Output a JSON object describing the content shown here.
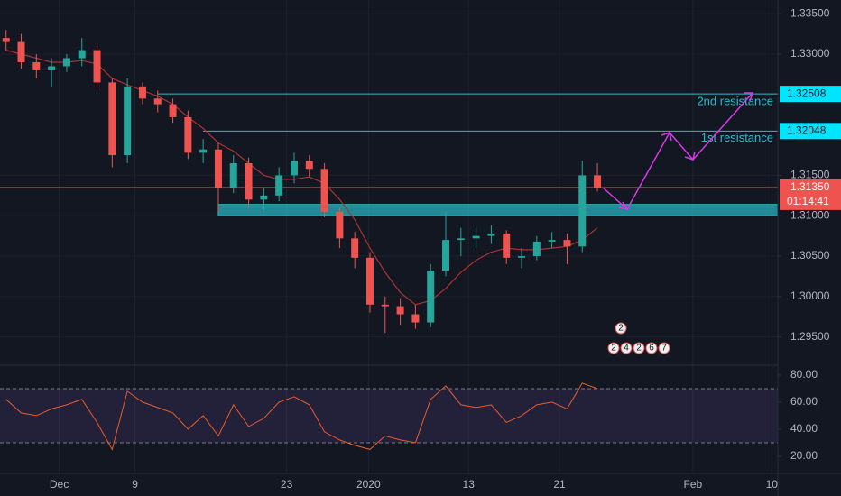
{
  "chart_data": {
    "type": "candlestick",
    "up_color": "#26a69a",
    "down_color": "#ef5350",
    "grid": true,
    "xlim": [
      -3.9,
      47.4
    ],
    "xticks": [
      {
        "value": 0,
        "label": "Dec"
      },
      {
        "value": 5,
        "label": "9"
      },
      {
        "value": 15,
        "label": "23"
      },
      {
        "value": 20.4,
        "label": "2020"
      },
      {
        "value": 27,
        "label": "13"
      },
      {
        "value": 33,
        "label": "21"
      },
      {
        "value": 41.8,
        "label": "Feb"
      },
      {
        "value": 47,
        "label": "10"
      }
    ],
    "ylim": [
      1.2915,
      1.3367
    ],
    "yticks": [
      {
        "value": 1.335,
        "label": "1.33500"
      },
      {
        "value": 1.33,
        "label": "1.33000"
      },
      {
        "value": 1.315,
        "label": "1.31500"
      },
      {
        "value": 1.31,
        "label": "1.31000"
      },
      {
        "value": 1.305,
        "label": "1.30500"
      },
      {
        "value": 1.3,
        "label": "1.30000"
      },
      {
        "value": 1.295,
        "label": "1.29500"
      }
    ],
    "x": [
      -3.5,
      -2.5,
      -1.5,
      -0.5,
      0.5,
      1.5,
      2.5,
      3.5,
      4.5,
      5.5,
      6.5,
      7.5,
      8.5,
      9.5,
      10.5,
      11.5,
      12.5,
      13.5,
      14.5,
      15.5,
      16.5,
      17.5,
      18.5,
      19.5,
      20.5,
      21.5,
      22.5,
      23.5,
      24.5,
      25.5,
      26.5,
      27.5,
      28.5,
      29.5,
      30.5,
      31.5,
      32.5,
      33.5,
      34.5,
      35.5
    ],
    "open": [
      1.332,
      1.3315,
      1.329,
      1.328,
      1.3285,
      1.3295,
      1.3305,
      1.3265,
      1.3175,
      1.326,
      1.3245,
      1.3238,
      1.3222,
      1.3178,
      1.3182,
      1.3135,
      1.3165,
      1.312,
      1.3125,
      1.315,
      1.3168,
      1.3158,
      1.3105,
      1.3072,
      1.3048,
      1.299,
      1.2988,
      1.2978,
      1.2968,
      1.3032,
      1.307,
      1.3072,
      1.3075,
      1.3078,
      1.3048,
      1.305,
      1.3068,
      1.307,
      1.3062,
      1.315
    ],
    "high": [
      1.333,
      1.3325,
      1.33,
      1.3295,
      1.33,
      1.332,
      1.331,
      1.327,
      1.327,
      1.3265,
      1.3255,
      1.3245,
      1.323,
      1.3195,
      1.319,
      1.3175,
      1.3172,
      1.3135,
      1.316,
      1.3178,
      1.3175,
      1.3165,
      1.311,
      1.308,
      1.3055,
      1.3,
      1.2998,
      1.299,
      1.304,
      1.3105,
      1.3085,
      1.3085,
      1.3088,
      1.3082,
      1.306,
      1.3075,
      1.308,
      1.3078,
      1.3168,
      1.3165
    ],
    "low": [
      1.3305,
      1.3282,
      1.327,
      1.326,
      1.3278,
      1.3285,
      1.3258,
      1.316,
      1.3165,
      1.3238,
      1.3228,
      1.3215,
      1.317,
      1.3165,
      1.3105,
      1.3128,
      1.311,
      1.3105,
      1.3118,
      1.314,
      1.3148,
      1.3098,
      1.306,
      1.3035,
      1.298,
      1.2955,
      1.2965,
      1.296,
      1.2962,
      1.3025,
      1.305,
      1.306,
      1.3065,
      1.304,
      1.3035,
      1.3045,
      1.306,
      1.304,
      1.3055,
      1.313
    ],
    "close": [
      1.3315,
      1.329,
      1.328,
      1.3285,
      1.3295,
      1.3305,
      1.3265,
      1.3175,
      1.326,
      1.3245,
      1.3238,
      1.3222,
      1.3178,
      1.3182,
      1.3135,
      1.3165,
      1.312,
      1.3125,
      1.315,
      1.3168,
      1.3158,
      1.3105,
      1.3072,
      1.3048,
      1.299,
      1.2988,
      1.2978,
      1.2968,
      1.3032,
      1.307,
      1.3072,
      1.3075,
      1.3078,
      1.3048,
      1.305,
      1.3068,
      1.307,
      1.3062,
      1.315,
      1.3135
    ],
    "ma": {
      "color": "#a83232",
      "values": [
        1.3305,
        1.33,
        1.3295,
        1.329,
        1.329,
        1.3292,
        1.3288,
        1.327,
        1.3262,
        1.3255,
        1.3248,
        1.3238,
        1.3222,
        1.3208,
        1.319,
        1.318,
        1.3165,
        1.315,
        1.3145,
        1.3145,
        1.3148,
        1.314,
        1.312,
        1.3095,
        1.306,
        1.303,
        1.3005,
        1.299,
        1.2995,
        1.301,
        1.303,
        1.3045,
        1.3055,
        1.306,
        1.3058,
        1.3058,
        1.306,
        1.3062,
        1.307,
        1.3085
      ]
    },
    "levels": [
      {
        "value": 1.32508,
        "label": "1.32508",
        "name": "2nd resistance",
        "start": 6.5,
        "color": "#2bbbc9"
      },
      {
        "value": 1.32048,
        "label": "1.32048",
        "name": "1st resistance",
        "start": 9.5,
        "color": "#2bbbc9"
      }
    ],
    "zone": {
      "low": 1.31,
      "high": 1.3114,
      "start": 10.5,
      "color": "#2bbbc9"
    },
    "last_price": {
      "value": 1.3135,
      "label": "1.31350",
      "countdown": "01:14:41",
      "color": "#ef5350"
    },
    "events": [
      "2",
      "2",
      "4",
      "2",
      "6",
      "7"
    ],
    "rsi": {
      "color": "#e65c2e",
      "ylim": [
        7.3,
        87.3
      ],
      "yticks": [
        {
          "value": 80,
          "label": "80.00"
        },
        {
          "value": 60,
          "label": "60.00"
        },
        {
          "value": 40,
          "label": "40.00"
        },
        {
          "value": 20,
          "label": "20.00"
        }
      ],
      "bands": [
        30,
        70
      ],
      "values": [
        62,
        52,
        50,
        55,
        58,
        62,
        45,
        25,
        68,
        60,
        56,
        52,
        40,
        50,
        35,
        58,
        42,
        48,
        60,
        64,
        58,
        38,
        32,
        28,
        25,
        35,
        32,
        30,
        62,
        72,
        58,
        56,
        58,
        45,
        50,
        58,
        60,
        55,
        74,
        70
      ]
    }
  }
}
